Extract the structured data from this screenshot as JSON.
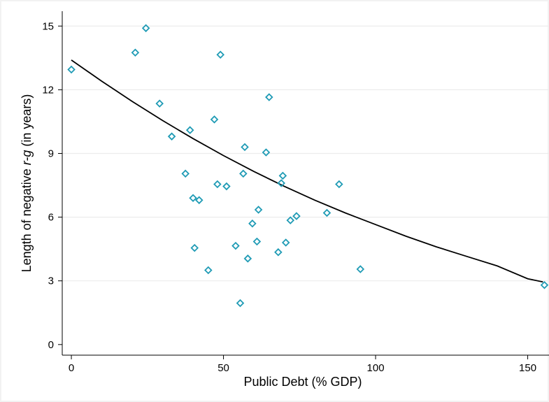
{
  "chart_data": {
    "type": "scatter",
    "xlabel": "Public Debt (% GDP)",
    "ylabel_parts": [
      "Length of negative ",
      "r-g",
      " (in years)"
    ],
    "xlim": [
      -3,
      157
    ],
    "ylim": [
      -0.5,
      15.7
    ],
    "xticks": [
      0,
      50,
      100,
      150
    ],
    "yticks": [
      0,
      3,
      6,
      9,
      12,
      15
    ],
    "grid": true,
    "marker": "hollow-diamond",
    "colors": {
      "points": "#1f9bb5",
      "fit": "#000000",
      "grid": "#ececec",
      "frame": "#f5f5f5"
    },
    "series": [
      {
        "type": "scatter",
        "x": [
          0,
          21,
          24.5,
          29,
          33,
          37.5,
          39,
          40,
          40.5,
          42,
          45,
          47,
          48,
          49,
          51,
          54,
          55.5,
          56.5,
          57,
          58,
          59.5,
          61,
          61.5,
          64,
          65,
          68,
          69,
          69.5,
          70.5,
          72,
          74,
          84,
          88,
          95,
          155.5
        ],
        "y": [
          12.95,
          13.75,
          14.9,
          11.35,
          9.8,
          8.05,
          10.1,
          6.9,
          4.55,
          6.8,
          3.5,
          10.6,
          7.55,
          13.65,
          7.45,
          4.65,
          1.95,
          8.05,
          9.3,
          4.05,
          5.7,
          4.85,
          6.35,
          9.05,
          11.65,
          4.35,
          7.6,
          7.95,
          4.8,
          5.85,
          6.05,
          6.2,
          7.55,
          3.55,
          2.8
        ]
      },
      {
        "type": "line",
        "name": "fit",
        "x": [
          0,
          10,
          20,
          30,
          40,
          50,
          60,
          70,
          80,
          90,
          100,
          110,
          120,
          130,
          140,
          150,
          155
        ],
        "y": [
          13.4,
          12.4,
          11.45,
          10.55,
          9.7,
          8.9,
          8.15,
          7.45,
          6.8,
          6.2,
          5.65,
          5.1,
          4.6,
          4.15,
          3.7,
          3.1,
          2.95
        ]
      }
    ]
  }
}
